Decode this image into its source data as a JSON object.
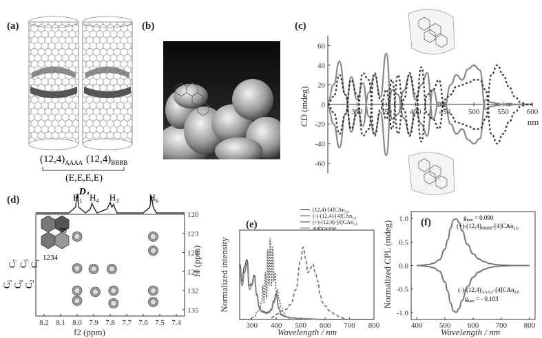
{
  "labels": {
    "a": "(a)",
    "b": "(b)",
    "c": "(c)",
    "d": "(d)",
    "e": "(e)",
    "f": "(f)"
  },
  "panel_a": {
    "left_label": "(12,4)",
    "left_sub": "AAAA",
    "right_label": "(12,4)",
    "right_sub": "BBBB",
    "bracket_label": "(E,E,E,E)",
    "symmetry": "D",
    "symmetry_sub": "4"
  },
  "panel_d": {
    "peaks": [
      {
        "t": "H",
        "s": "1"
      },
      {
        "t": "H",
        "s": "4"
      },
      {
        "t": "H",
        "s": "3"
      },
      {
        "t": "H",
        "s": "6"
      }
    ],
    "ring_nums": "76",
    "ring_nums2": "1234",
    "carbon_labels": [
      "C",
      "C",
      "C",
      "C",
      "C",
      "C",
      "C"
    ],
    "carbon_subs": [
      "5",
      "7",
      "6",
      "3",
      "2",
      "1",
      "4"
    ]
  },
  "panel_e": {
    "legend": [
      {
        "pre": "(12,4)-[4]CAn",
        "sub": "2,6",
        "color": "#555555"
      },
      {
        "pre": "(-)-(12,4)-[4]CAn",
        "sub": "2,6",
        "color": "#888888"
      },
      {
        "pre": "(+)-(12,4)-[4]CAn",
        "sub": "2,6",
        "color": "#777777"
      },
      {
        "pre": "anthracene",
        "sub": "",
        "color": "#999999"
      }
    ]
  },
  "panel_f": {
    "g_top_label": "g",
    "g_top_sub": "lum",
    "g_top_value": "= 0.090",
    "top_compound": "(+)-(12,4)",
    "top_compound_sub": "BBBB",
    "top_compound_tail": "-[4]CAn",
    "top_compound_tail_sub": "2,6",
    "bot_compound": "(-)-(12,4)",
    "bot_compound_sub": "AAAA",
    "bot_compound_tail": "-[4]CAn",
    "bot_compound_tail_sub": "2,6",
    "g_bot_label": "g",
    "g_bot_sub": "lum",
    "g_bot_value": "= - 0.103"
  },
  "chart_data": [
    {
      "id": "c",
      "type": "line",
      "title": "",
      "xlabel": "nm",
      "ylabel": "CD (mdeg)",
      "xlim": [
        250,
        600
      ],
      "ylim": [
        -70,
        70
      ],
      "xticks": [
        "300",
        "350",
        "400",
        "450",
        "500",
        "550",
        "600"
      ],
      "yticks": [
        "60",
        "40",
        "20",
        "0",
        "-20",
        "-40",
        "-60"
      ],
      "series": [
        {
          "style": "solid",
          "color": "#888888",
          "x": [
            250,
            260,
            270,
            280,
            290,
            300,
            310,
            320,
            330,
            340,
            350,
            360,
            370,
            380,
            390,
            400,
            410,
            420,
            430,
            440,
            450,
            460,
            470,
            480,
            490,
            500,
            510,
            520,
            530,
            540,
            550,
            560,
            570,
            580,
            590,
            600
          ],
          "y": [
            2,
            20,
            44,
            10,
            -28,
            -5,
            -22,
            12,
            30,
            8,
            52,
            -15,
            -10,
            14,
            30,
            5,
            20,
            32,
            -15,
            2,
            -2,
            20,
            30,
            25,
            36,
            40,
            35,
            -5,
            -2,
            -1,
            0,
            1,
            0,
            0,
            0,
            0
          ]
        },
        {
          "style": "solid",
          "color": "#888888",
          "x": [
            250,
            260,
            270,
            280,
            290,
            300,
            310,
            320,
            330,
            340,
            350,
            360,
            370,
            380,
            390,
            400,
            410,
            420,
            430,
            440,
            450,
            460,
            470,
            480,
            490,
            500,
            510,
            520,
            530,
            540,
            550,
            560,
            570,
            580,
            590,
            600
          ],
          "y": [
            -2,
            -20,
            -44,
            -10,
            28,
            5,
            22,
            -12,
            -30,
            -8,
            -52,
            15,
            10,
            -14,
            -30,
            -5,
            -20,
            -32,
            15,
            -2,
            2,
            -20,
            -30,
            -25,
            -36,
            -40,
            -35,
            5,
            2,
            1,
            0,
            -1,
            0,
            0,
            0,
            0
          ]
        },
        {
          "style": "dashed",
          "color": "#333333",
          "x": [
            250,
            260,
            270,
            280,
            290,
            300,
            310,
            320,
            330,
            340,
            350,
            360,
            370,
            380,
            390,
            400,
            410,
            420,
            430,
            440,
            450,
            460,
            470,
            480,
            490,
            500,
            510,
            520,
            530,
            540,
            550,
            560,
            570,
            580,
            590,
            600
          ],
          "y": [
            0,
            -8,
            -30,
            -10,
            25,
            10,
            -32,
            -25,
            32,
            5,
            -15,
            25,
            -30,
            5,
            32,
            10,
            -38,
            10,
            15,
            25,
            -5,
            -10,
            -18,
            -20,
            -22,
            -25,
            -25,
            -15,
            30,
            40,
            30,
            18,
            8,
            2,
            0,
            0
          ]
        },
        {
          "style": "dashed",
          "color": "#333333",
          "x": [
            250,
            260,
            270,
            280,
            290,
            300,
            310,
            320,
            330,
            340,
            350,
            360,
            370,
            380,
            390,
            400,
            410,
            420,
            430,
            440,
            450,
            460,
            470,
            480,
            490,
            500,
            510,
            520,
            530,
            540,
            550,
            560,
            570,
            580,
            590,
            600
          ],
          "y": [
            0,
            8,
            30,
            10,
            -25,
            -10,
            32,
            25,
            -32,
            -5,
            15,
            -25,
            30,
            -5,
            -32,
            -10,
            38,
            -10,
            -15,
            -25,
            5,
            10,
            18,
            20,
            22,
            25,
            25,
            15,
            -30,
            -40,
            -30,
            -18,
            -8,
            -2,
            0,
            0
          ]
        }
      ]
    },
    {
      "id": "d",
      "type": "heatmap",
      "title": "",
      "xlabel": "f2 (ppm)",
      "ylabel": "f1 (ppm)",
      "xlim": [
        8.25,
        7.35
      ],
      "ylim": [
        120,
        136
      ],
      "xticks": [
        "8.2",
        "8.1",
        "8.0",
        "7.9",
        "7.8",
        "7.7",
        "7.6",
        "7.5",
        "7.4"
      ],
      "yticks": [
        "120",
        "123",
        "126",
        "129",
        "132",
        "135"
      ],
      "spots": [
        {
          "x": 8.0,
          "y": 123.5
        },
        {
          "x": 8.0,
          "y": 128.5
        },
        {
          "x": 8.0,
          "y": 132.0
        },
        {
          "x": 8.0,
          "y": 133.6
        },
        {
          "x": 7.9,
          "y": 128.6
        },
        {
          "x": 7.89,
          "y": 132.2
        },
        {
          "x": 7.79,
          "y": 128.6
        },
        {
          "x": 7.78,
          "y": 132.0
        },
        {
          "x": 7.78,
          "y": 134.0
        },
        {
          "x": 7.54,
          "y": 123.5
        },
        {
          "x": 7.54,
          "y": 125.7
        },
        {
          "x": 7.54,
          "y": 132.0
        },
        {
          "x": 7.54,
          "y": 133.8
        }
      ],
      "projection": {
        "x": [
          8.25,
          8.05,
          8.01,
          8.0,
          7.99,
          7.95,
          7.92,
          7.91,
          7.9,
          7.88,
          7.82,
          7.8,
          7.79,
          7.78,
          7.76,
          7.6,
          7.56,
          7.55,
          7.54,
          7.52,
          7.35
        ],
        "y": [
          0,
          0,
          0.3,
          1,
          0.3,
          0,
          0.2,
          0.5,
          0.3,
          0,
          0.2,
          0.55,
          0.3,
          0.45,
          0,
          0,
          0.3,
          0.9,
          0.3,
          0,
          0
        ]
      }
    },
    {
      "id": "e",
      "type": "line",
      "title": "",
      "xlabel": "Wavelength / nm",
      "ylabel": "Normalized intensity",
      "xlim": [
        250,
        800
      ],
      "ylim": [
        0,
        1.05
      ],
      "xticks": [
        "300",
        "400",
        "500",
        "600",
        "700",
        "800"
      ],
      "series": [
        {
          "name": "(12,4)-[4]CAn2,6",
          "style": "solid",
          "color": "#555555",
          "x": [
            250,
            260,
            270,
            280,
            290,
            300,
            310,
            320,
            330,
            340,
            350,
            360,
            370,
            380,
            390,
            400,
            410,
            420,
            440,
            460,
            500,
            600,
            700,
            800
          ],
          "y": [
            0.65,
            0.45,
            0.62,
            0.7,
            0.4,
            0.42,
            0.52,
            0.3,
            0.15,
            0.1,
            0.09,
            0.08,
            0.09,
            0.12,
            0.22,
            0.3,
            0.14,
            0.06,
            0.03,
            0.02,
            0.01,
            0,
            0,
            0
          ]
        },
        {
          "name": "(-)-(12,4)-[4]CAn2,6",
          "style": "solid",
          "color": "#888888",
          "x": [
            250,
            260,
            270,
            280,
            290,
            300,
            310,
            320,
            330,
            340,
            350,
            360,
            370,
            380,
            390,
            400,
            410,
            420,
            440,
            460,
            500,
            600,
            700,
            800
          ],
          "y": [
            0.6,
            0.4,
            0.55,
            0.65,
            0.35,
            0.4,
            0.5,
            0.28,
            0.14,
            0.09,
            0.08,
            0.07,
            0.08,
            0.11,
            0.2,
            0.28,
            0.13,
            0.05,
            0.03,
            0.02,
            0.01,
            0,
            0,
            0
          ]
        },
        {
          "name": "(+)-(12,4)-[4]CAn2,6",
          "style": "dashed",
          "color": "#777777",
          "x": [
            380,
            400,
            420,
            440,
            460,
            480,
            500,
            510,
            520,
            530,
            540,
            550,
            560,
            570,
            580,
            590,
            600,
            620,
            640,
            660,
            680
          ],
          "y": [
            0.02,
            0.06,
            0.1,
            0.12,
            0.18,
            0.35,
            0.7,
            0.85,
            0.72,
            0.55,
            0.6,
            0.65,
            0.55,
            0.45,
            0.28,
            0.2,
            0.16,
            0.1,
            0.06,
            0.03,
            0.01
          ]
        },
        {
          "name": "anthracene",
          "style": "dotted",
          "color": "#666666",
          "x": [
            250,
            290,
            300,
            310,
            320,
            330,
            340,
            345,
            350,
            355,
            360,
            365,
            370,
            375,
            380,
            385,
            390,
            395,
            400,
            405,
            410,
            420,
            430,
            440,
            460
          ],
          "y": [
            0,
            0,
            0.01,
            0.03,
            0.08,
            0.12,
            0.2,
            0.4,
            0.2,
            0.55,
            0.25,
            0.82,
            0.4,
            0.95,
            0.4,
            0.85,
            0.45,
            0.55,
            0.3,
            0.35,
            0.25,
            0.15,
            0.08,
            0.03,
            0
          ]
        }
      ]
    },
    {
      "id": "f",
      "type": "line",
      "title": "",
      "xlabel": "Wavelength / nm",
      "ylabel": "Normalized CPL (mdeg)",
      "xlim": [
        380,
        820
      ],
      "ylim": [
        -1.15,
        1.15
      ],
      "xticks": [
        "400",
        "500",
        "600",
        "700",
        "800"
      ],
      "yticks": [
        "1.0",
        "0.5",
        "0.0",
        "-0.5",
        "-1.0"
      ],
      "series": [
        {
          "style": "solid",
          "color": "#777777",
          "x": [
            400,
            420,
            440,
            460,
            480,
            500,
            510,
            520,
            530,
            540,
            550,
            560,
            580,
            600,
            620,
            640,
            660,
            680,
            700,
            740,
            800
          ],
          "y": [
            0,
            0.005,
            0.02,
            0.05,
            0.12,
            0.35,
            0.55,
            0.8,
            0.97,
            1.0,
            0.92,
            0.75,
            0.45,
            0.25,
            0.14,
            0.08,
            0.04,
            0.02,
            0.01,
            0,
            0
          ]
        },
        {
          "style": "solid",
          "color": "#777777",
          "x": [
            400,
            420,
            440,
            460,
            480,
            500,
            510,
            520,
            530,
            540,
            550,
            560,
            580,
            600,
            620,
            640,
            660,
            680,
            700,
            740,
            800
          ],
          "y": [
            0,
            -0.005,
            -0.02,
            -0.05,
            -0.12,
            -0.35,
            -0.55,
            -0.8,
            -0.97,
            -1.0,
            -0.92,
            -0.75,
            -0.45,
            -0.25,
            -0.14,
            -0.08,
            -0.04,
            -0.02,
            -0.01,
            0,
            0
          ]
        }
      ]
    }
  ]
}
